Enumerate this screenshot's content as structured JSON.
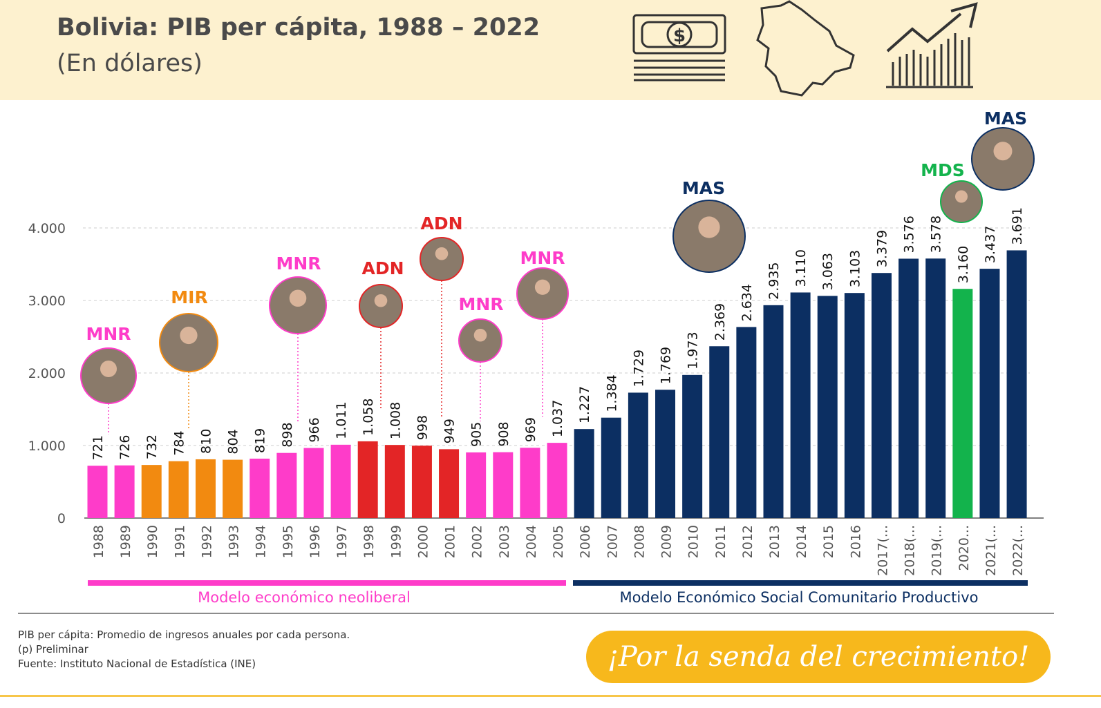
{
  "header": {
    "title": "Bolivia: PIB per cápita, 1988 – 2022",
    "subtitle": "(En dólares)"
  },
  "icons": [
    "money-icon",
    "bolivia-map-icon",
    "growth-chart-icon"
  ],
  "chart_data": {
    "type": "bar",
    "categories": [
      "1988",
      "1989",
      "1990",
      "1991",
      "1992",
      "1993",
      "1994",
      "1995",
      "1996",
      "1997",
      "1998",
      "1999",
      "2000",
      "2001",
      "2002",
      "2003",
      "2004",
      "2005",
      "2006",
      "2007",
      "2008",
      "2009",
      "2010",
      "2011",
      "2012",
      "2013",
      "2014",
      "2015",
      "2016",
      "2017(...",
      "2018(...",
      "2019(...",
      "2020...",
      "2021(...",
      "2022(..."
    ],
    "values": [
      721,
      726,
      732,
      784,
      810,
      804,
      819,
      898,
      966,
      1011,
      1058,
      1008,
      998,
      949,
      905,
      908,
      969,
      1037,
      1227,
      1384,
      1729,
      1769,
      1973,
      2369,
      2634,
      2935,
      3110,
      3063,
      3103,
      3379,
      3576,
      3578,
      3160,
      3437,
      3691
    ],
    "value_labels": [
      "721",
      "726",
      "732",
      "784",
      "810",
      "804",
      "819",
      "898",
      "966",
      "1.011",
      "1.058",
      "1.008",
      "998",
      "949",
      "905",
      "908",
      "969",
      "1.037",
      "1.227",
      "1.384",
      "1.729",
      "1.769",
      "1.973",
      "2.369",
      "2.634",
      "2.935",
      "3.110",
      "3.063",
      "3.103",
      "3.379",
      "3.576",
      "3.578",
      "3.160",
      "3.437",
      "3.691"
    ],
    "bar_party": [
      "MNR",
      "MNR",
      "MIR",
      "MIR",
      "MIR",
      "MIR",
      "MNR",
      "MNR",
      "MNR",
      "MNR",
      "ADN",
      "ADN",
      "ADN",
      "ADN",
      "MNR",
      "MNR",
      "MNR",
      "MNR",
      "MAS",
      "MAS",
      "MAS",
      "MAS",
      "MAS",
      "MAS",
      "MAS",
      "MAS",
      "MAS",
      "MAS",
      "MAS",
      "MAS",
      "MAS",
      "MAS",
      "MDS",
      "MAS",
      "MAS"
    ],
    "party_colors": {
      "MNR": "#fe3cc9",
      "MIR": "#f28a10",
      "ADN": "#e32526",
      "MAS": "#0c2f62",
      "MDS": "#13b34c"
    },
    "ylim": [
      0,
      4000
    ],
    "yticks": [
      "0",
      "1.000",
      "2.000",
      "3.000",
      "4.000"
    ],
    "grid": true,
    "government_labels": [
      {
        "party": "MNR",
        "year": "1988"
      },
      {
        "party": "MIR",
        "year": "1991"
      },
      {
        "party": "MNR",
        "year": "1995"
      },
      {
        "party": "ADN",
        "year": "1998"
      },
      {
        "party": "ADN",
        "year": "2001"
      },
      {
        "party": "MNR",
        "year": "2002"
      },
      {
        "party": "MNR",
        "year": "2004"
      },
      {
        "party": "MAS",
        "year": "2006"
      },
      {
        "party": "MDS",
        "year": "2020"
      },
      {
        "party": "MAS",
        "year": "2021"
      }
    ],
    "periods": [
      {
        "label": "Modelo económico neoliberal",
        "color": "#fe3cc9"
      },
      {
        "label": "Modelo Económico Social Comunitario Productivo",
        "color": "#0c2f62"
      }
    ]
  },
  "footer": {
    "notes": [
      "PIB per cápita: Promedio de ingresos anuales por cada persona.",
      "(p) Preliminar",
      "Fuente: Instituto Nacional de Estadística (INE)"
    ],
    "slogan": "¡Por la senda del crecimiento!"
  }
}
